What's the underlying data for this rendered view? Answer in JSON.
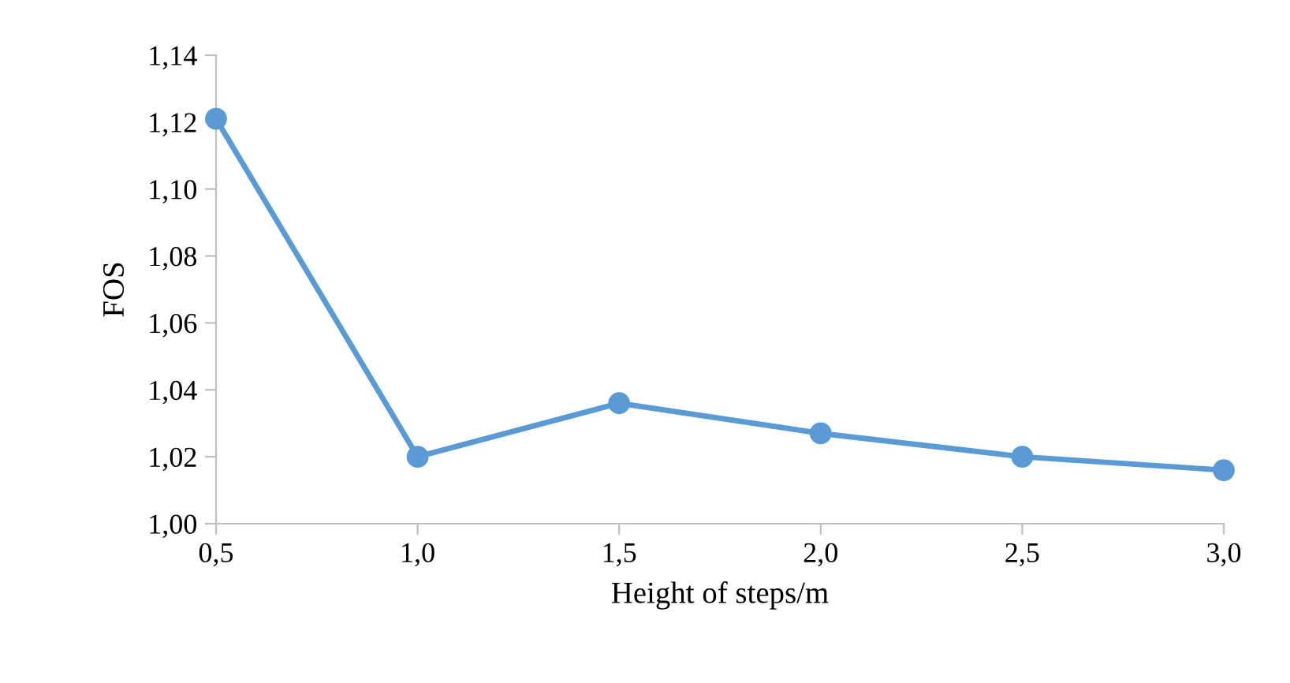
{
  "chart_data": {
    "type": "line",
    "xlabel": "Height of steps/m",
    "ylabel": "FOS",
    "x": [
      0.5,
      1.0,
      1.5,
      2.0,
      2.5,
      3.0
    ],
    "series": [
      {
        "color": "#5b9bd5",
        "values": [
          1.121,
          1.02,
          1.036,
          1.027,
          1.02,
          1.016
        ]
      }
    ],
    "xlim": [
      0.5,
      3.0
    ],
    "xticks": [
      {
        "value": 0.5,
        "label": "0,5"
      },
      {
        "value": 1.0,
        "label": "1,0"
      },
      {
        "value": 1.5,
        "label": "1,5"
      },
      {
        "value": 2.0,
        "label": "2,0"
      },
      {
        "value": 2.5,
        "label": "2,5"
      },
      {
        "value": 3.0,
        "label": "3,0"
      }
    ],
    "ylim": [
      1.0,
      1.14
    ],
    "yticks": [
      {
        "value": 1.0,
        "label": "1,00"
      },
      {
        "value": 1.02,
        "label": "1,02"
      },
      {
        "value": 1.04,
        "label": "1,04"
      },
      {
        "value": 1.06,
        "label": "1,06"
      },
      {
        "value": 1.08,
        "label": "1,08"
      },
      {
        "value": 1.1,
        "label": "1,10"
      },
      {
        "value": 1.12,
        "label": "1,12"
      },
      {
        "value": 1.14,
        "label": "1,14"
      }
    ],
    "marker": "circle",
    "line_style": "solid",
    "grid": false,
    "legend": false
  }
}
